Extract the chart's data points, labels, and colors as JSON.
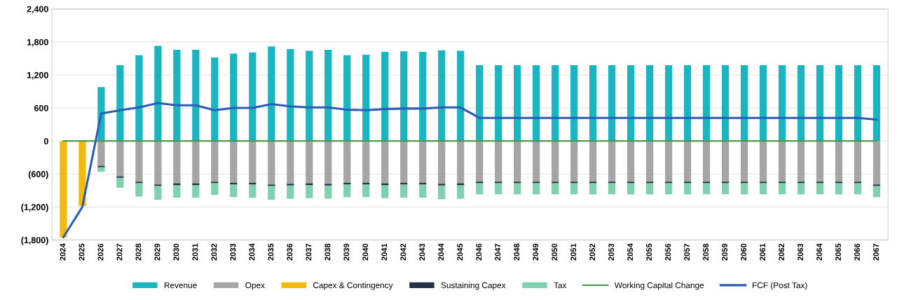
{
  "chart_data": {
    "type": "bar",
    "stacked": true,
    "categories": [
      "2024",
      "2025",
      "2026",
      "2027",
      "2028",
      "2029",
      "2030",
      "2031",
      "2032",
      "2033",
      "2034",
      "2035",
      "2036",
      "2037",
      "2038",
      "2039",
      "2040",
      "2041",
      "2042",
      "2043",
      "2044",
      "2045",
      "2046",
      "2047",
      "2048",
      "2049",
      "2050",
      "2051",
      "2052",
      "2053",
      "2054",
      "2055",
      "2056",
      "2057",
      "2058",
      "2059",
      "2060",
      "2061",
      "2062",
      "2063",
      "2064",
      "2065",
      "2066",
      "2067"
    ],
    "ylim": [
      -1800,
      2400
    ],
    "yticks": [
      {
        "value": -1800,
        "label": "(1,800)"
      },
      {
        "value": -1200,
        "label": "(1,200)"
      },
      {
        "value": -600,
        "label": "(600)"
      },
      0,
      {
        "value": 600,
        "label": "600"
      },
      {
        "value": 1200,
        "label": "1,200"
      },
      {
        "value": 1800,
        "label": "1,800"
      },
      {
        "value": 2400,
        "label": "2,400"
      }
    ],
    "grid": "y",
    "legend": "bottom",
    "series": [
      {
        "name": "Revenue",
        "color": "#1ab5c1",
        "values": [
          0,
          0,
          980,
          1380,
          1560,
          1730,
          1660,
          1660,
          1520,
          1590,
          1610,
          1720,
          1670,
          1640,
          1660,
          1560,
          1570,
          1620,
          1630,
          1620,
          1650,
          1640,
          1380,
          1380,
          1380,
          1380,
          1380,
          1380,
          1380,
          1380,
          1380,
          1380,
          1380,
          1380,
          1380,
          1380,
          1380,
          1380,
          1380,
          1380,
          1380,
          1380,
          1380,
          1380
        ]
      },
      {
        "name": "Opex",
        "color": "#a5a5a5",
        "values": [
          0,
          0,
          -450,
          -640,
          -740,
          -790,
          -770,
          -770,
          -740,
          -760,
          -760,
          -790,
          -780,
          -770,
          -780,
          -760,
          -760,
          -770,
          -760,
          -760,
          -780,
          -770,
          -740,
          -740,
          -740,
          -740,
          -740,
          -740,
          -740,
          -740,
          -740,
          -740,
          -740,
          -740,
          -740,
          -740,
          -740,
          -740,
          -740,
          -740,
          -740,
          -740,
          -740,
          -790
        ]
      },
      {
        "name": "Capex & Contingency",
        "color": "#f2b90f",
        "values": [
          -1750,
          -1180,
          0,
          0,
          0,
          0,
          0,
          0,
          0,
          0,
          0,
          0,
          0,
          0,
          0,
          0,
          0,
          0,
          0,
          0,
          0,
          0,
          0,
          0,
          0,
          0,
          0,
          0,
          0,
          0,
          0,
          0,
          0,
          0,
          0,
          0,
          0,
          0,
          0,
          0,
          0,
          0,
          0,
          0
        ]
      },
      {
        "name": "Sustaining Capex",
        "color": "#243447",
        "values": [
          0,
          0,
          -30,
          -30,
          -30,
          -30,
          -30,
          -30,
          -30,
          -30,
          -30,
          -30,
          -30,
          -30,
          -30,
          -30,
          -30,
          -30,
          -30,
          -30,
          -30,
          -30,
          -30,
          -30,
          -30,
          -30,
          -30,
          -30,
          -30,
          -30,
          -30,
          -30,
          -30,
          -30,
          -30,
          -30,
          -30,
          -30,
          -30,
          -30,
          -30,
          -30,
          -30,
          -30
        ]
      },
      {
        "name": "Tax",
        "color": "#7fd1b0",
        "values": [
          0,
          0,
          -80,
          -180,
          -240,
          -250,
          -230,
          -230,
          -210,
          -230,
          -240,
          -250,
          -240,
          -240,
          -240,
          -230,
          -230,
          -240,
          -240,
          -240,
          -250,
          -250,
          -200,
          -200,
          -200,
          -200,
          -200,
          -200,
          -200,
          -200,
          -200,
          -200,
          -200,
          -200,
          -200,
          -200,
          -200,
          -200,
          -200,
          -200,
          -200,
          -200,
          -200,
          -200
        ]
      },
      {
        "name": "Working Capital Change",
        "type": "line",
        "color": "#4e9a4a",
        "values": [
          0,
          0,
          0,
          0,
          0,
          0,
          0,
          0,
          0,
          0,
          0,
          0,
          0,
          0,
          0,
          0,
          0,
          0,
          0,
          0,
          0,
          0,
          0,
          0,
          0,
          0,
          0,
          0,
          0,
          0,
          0,
          0,
          0,
          0,
          0,
          0,
          0,
          0,
          0,
          0,
          0,
          0,
          0,
          0
        ]
      },
      {
        "name": "FCF (Post Tax)",
        "type": "line",
        "color": "#2a5cb8",
        "values": [
          -1750,
          -1200,
          500,
          560,
          610,
          690,
          650,
          650,
          560,
          600,
          600,
          670,
          630,
          610,
          610,
          570,
          560,
          580,
          590,
          590,
          610,
          610,
          420,
          420,
          420,
          420,
          420,
          420,
          420,
          420,
          420,
          420,
          420,
          420,
          420,
          420,
          420,
          420,
          420,
          420,
          420,
          420,
          420,
          390
        ]
      }
    ]
  }
}
